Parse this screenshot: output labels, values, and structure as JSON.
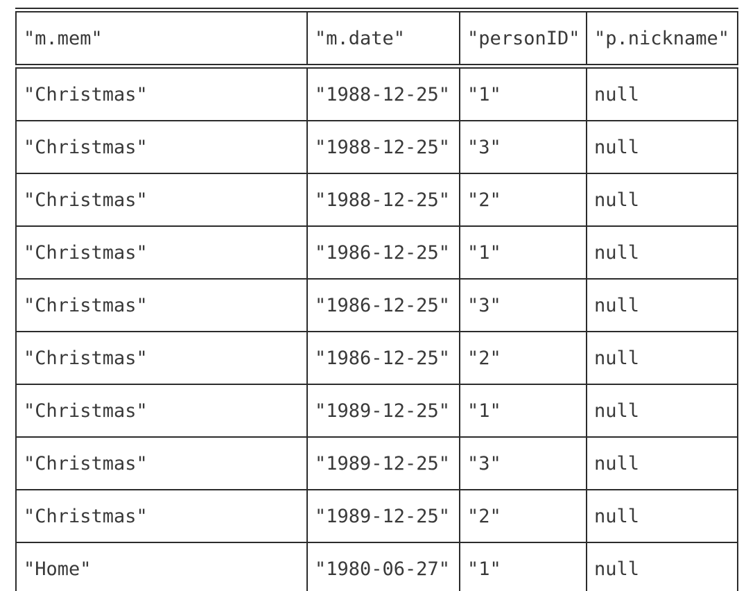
{
  "table": {
    "headers": [
      "\"m.mem\"",
      "\"m.date\"",
      "\"personID\"",
      "\"p.nickname\""
    ],
    "rows": [
      [
        "\"Christmas\"",
        "\"1988-12-25\"",
        "\"1\"",
        "null"
      ],
      [
        "\"Christmas\"",
        "\"1988-12-25\"",
        "\"3\"",
        "null"
      ],
      [
        "\"Christmas\"",
        "\"1988-12-25\"",
        "\"2\"",
        "null"
      ],
      [
        "\"Christmas\"",
        "\"1986-12-25\"",
        "\"1\"",
        "null"
      ],
      [
        "\"Christmas\"",
        "\"1986-12-25\"",
        "\"3\"",
        "null"
      ],
      [
        "\"Christmas\"",
        "\"1986-12-25\"",
        "\"2\"",
        "null"
      ],
      [
        "\"Christmas\"",
        "\"1989-12-25\"",
        "\"1\"",
        "null"
      ],
      [
        "\"Christmas\"",
        "\"1989-12-25\"",
        "\"3\"",
        "null"
      ],
      [
        "\"Christmas\"",
        "\"1989-12-25\"",
        "\"2\"",
        "null"
      ],
      [
        "\"Home\"",
        "\"1980-06-27\"",
        "\"1\"",
        "null"
      ]
    ]
  },
  "colors": {
    "border": "#2b2b2b",
    "text": "#393939",
    "background": "#ffffff"
  }
}
